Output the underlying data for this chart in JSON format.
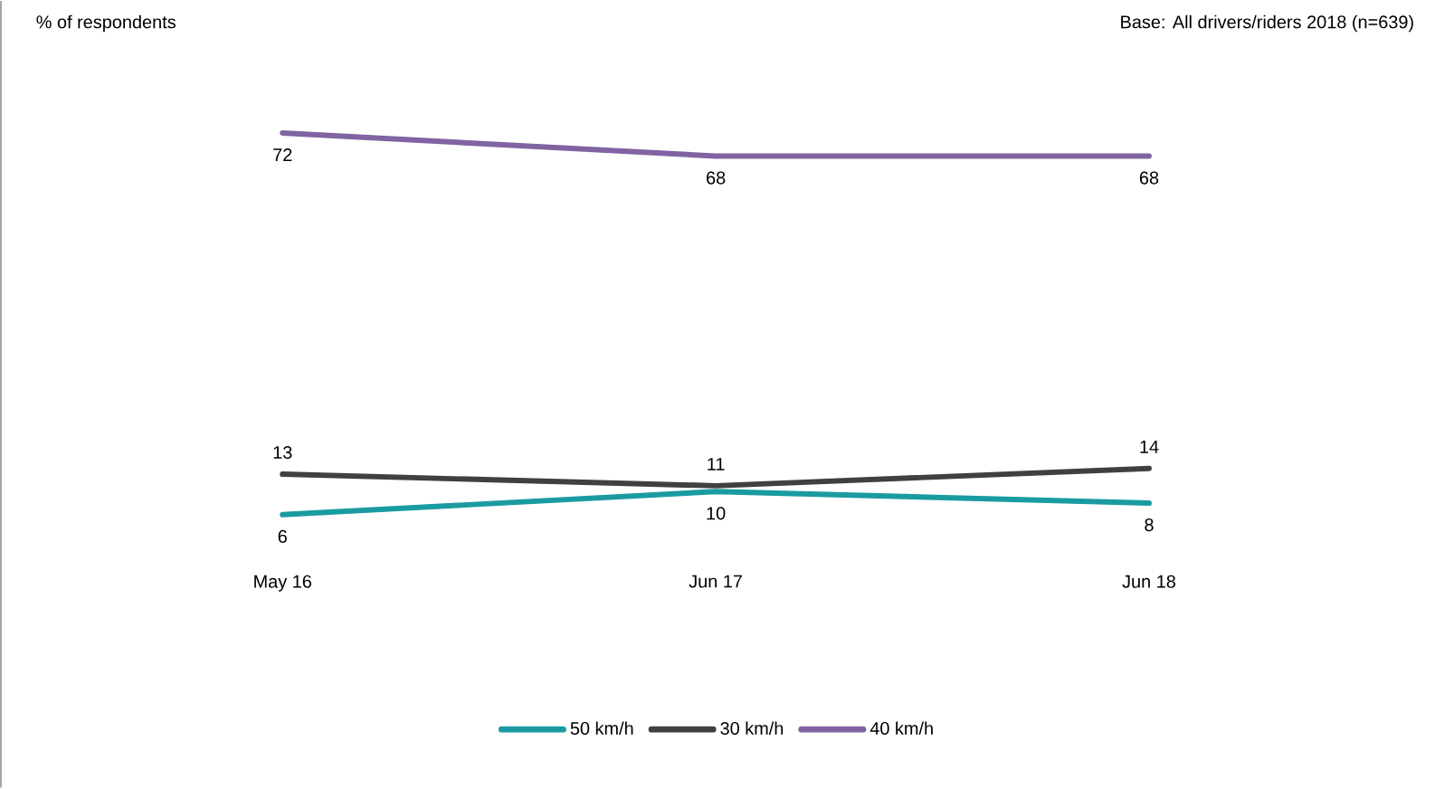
{
  "chart_data": {
    "type": "line",
    "annotations": [
      "% of respondents",
      "Base: All drivers/riders 2018 (n=639)"
    ],
    "categories": [
      "May 16",
      "Jun 17",
      "Jun 18"
    ],
    "series": [
      {
        "name": "50 km/h",
        "color": "#1a9ba1",
        "values": [
          6,
          10,
          8
        ]
      },
      {
        "name": "30 km/h",
        "color": "#404040",
        "values": [
          13,
          11,
          14
        ]
      },
      {
        "name": "40 km/h",
        "color": "#8064a2",
        "values": [
          72,
          68,
          68
        ]
      }
    ],
    "data_labels": true,
    "legend": "bottom",
    "marker": "none",
    "line_style": "solid"
  }
}
